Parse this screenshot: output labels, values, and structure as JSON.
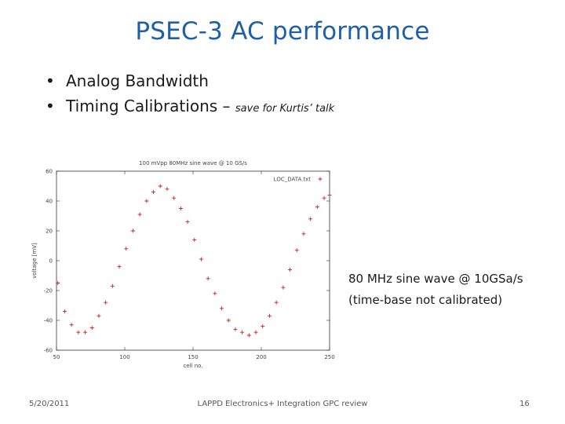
{
  "slide": {
    "title": "PSEC-3 AC performance",
    "bullets": [
      {
        "text": "Analog Bandwidth",
        "note": ""
      },
      {
        "text": "Timing Calibrations – ",
        "note": "save for Kurtis’ talk"
      }
    ],
    "bullet_symbol": "•",
    "caption_lines": [
      "80 MHz sine wave @ 10GSa/s",
      "(time-base not calibrated)"
    ],
    "footer": {
      "date": "5/20/2011",
      "center": "LAPPD Electronics+ Integration GPC review",
      "page": "16"
    }
  },
  "chart_data": {
    "type": "scatter",
    "title": "100 mVpp 80MHz sine wave @ 10 GS/s",
    "xlabel": "cell no.",
    "ylabel": "voltage [mV]",
    "xlim": [
      50,
      250
    ],
    "ylim": [
      -60,
      60
    ],
    "xticks": [
      50,
      100,
      150,
      200,
      250
    ],
    "yticks": [
      -60,
      -40,
      -20,
      0,
      20,
      40,
      60
    ],
    "legend": {
      "position": "top-right",
      "label": "LOC_DATA.txt",
      "marker": "+"
    },
    "marker_color": "#cc2222",
    "grid": false,
    "series": [
      {
        "name": "LOC_DATA.txt",
        "x": [
          51,
          56,
          61,
          66,
          71,
          76,
          81,
          86,
          91,
          96,
          101,
          106,
          111,
          116,
          121,
          126,
          131,
          136,
          141,
          146,
          151,
          156,
          161,
          166,
          171,
          176,
          181,
          186,
          191,
          196,
          201,
          206,
          211,
          216,
          221,
          226,
          231,
          236,
          241,
          246,
          250
        ],
        "y": [
          -15,
          -34,
          -43,
          -48,
          -48,
          -45,
          -37,
          -28,
          -17,
          -4,
          8,
          20,
          31,
          40,
          46,
          50,
          48,
          42,
          35,
          26,
          14,
          1,
          -12,
          -22,
          -32,
          -40,
          -46,
          -48,
          -50,
          -48,
          -44,
          -37,
          -28,
          -18,
          -6,
          7,
          18,
          28,
          36,
          42,
          44
        ]
      }
    ]
  }
}
